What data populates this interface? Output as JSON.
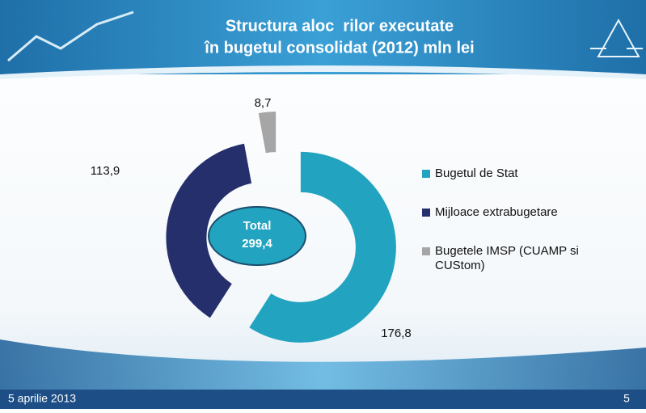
{
  "chart_data": {
    "type": "donut",
    "title": [
      "Structura aloc  rilor executate",
      "în bugetul consolidat (2012) mln lei"
    ],
    "categories": [
      "Bugetul de Stat",
      "Mijloace extrabugetare",
      "Bugetele IMSP (CUAMP si CUStom)"
    ],
    "values": [
      176.8,
      113.9,
      8.7
    ],
    "value_labels": [
      "176,8",
      "113,9",
      "8,7"
    ],
    "colors": [
      "#22a3bf",
      "#252f6b",
      "#a6a6a6"
    ],
    "center_text": "Total",
    "total": {
      "value": 299.4,
      "label": "299,4"
    },
    "legend": "right"
  },
  "footer": {
    "date": "5 aprilie 2013",
    "page": "5"
  }
}
